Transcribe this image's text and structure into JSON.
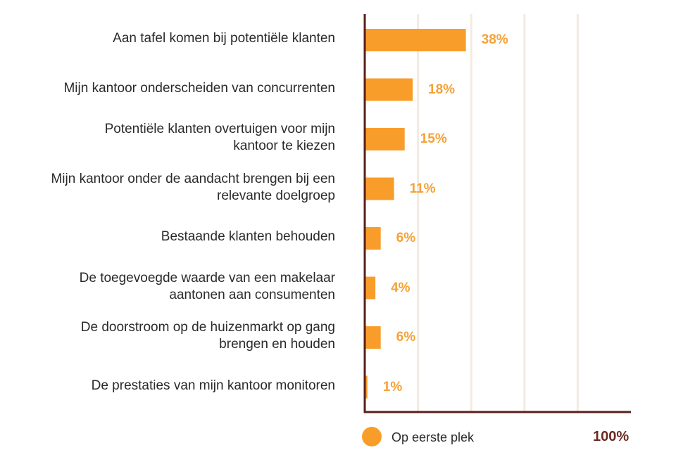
{
  "chart_data": {
    "type": "bar",
    "orientation": "horizontal",
    "categories": [
      "Aan tafel komen bij potentiële klanten",
      "Mijn kantoor onderscheiden van concurrenten",
      "Potentiële klanten overtuigen voor mijn kantoor te kiezen",
      "Mijn kantoor onder de aandacht brengen bij een relevante doelgroep",
      "Bestaande klanten behouden",
      "De toegevoegde waarde van een makelaar aantonen aan consumenten",
      "De doorstroom op de huizenmarkt op gang brengen en houden",
      "De prestaties van mijn kantoor monitoren"
    ],
    "category_lines": [
      [
        "Aan tafel komen bij potentiële klanten"
      ],
      [
        "Mijn kantoor onderscheiden van concurrenten"
      ],
      [
        "Potentiële klanten overtuigen voor mijn",
        "kantoor te kiezen"
      ],
      [
        "Mijn kantoor onder de aandacht brengen bij een",
        "relevante doelgroep"
      ],
      [
        "Bestaande klanten behouden"
      ],
      [
        "De toegevoegde waarde van een makelaar",
        "aantonen aan consumenten"
      ],
      [
        "De doorstroom op de huizenmarkt op gang",
        "brengen en houden"
      ],
      [
        "De prestaties van mijn kantoor monitoren"
      ]
    ],
    "series": [
      {
        "name": "Op eerste plek",
        "values": [
          38,
          18,
          15,
          11,
          6,
          4,
          6,
          1
        ]
      }
    ],
    "value_labels": [
      "38%",
      "18%",
      "15%",
      "11%",
      "6%",
      "4%",
      "6%",
      "1%"
    ],
    "xlim": [
      0,
      100
    ],
    "x_max_label": "100%",
    "gridlines": [
      20,
      40,
      60,
      80
    ],
    "legend_position": "bottom",
    "colors": {
      "bar": "#f99d2a",
      "value_label": "#f4a236",
      "axis": "#5a1f1a",
      "grid": "#f3ebe0",
      "max_label": "#6b2a22"
    }
  }
}
